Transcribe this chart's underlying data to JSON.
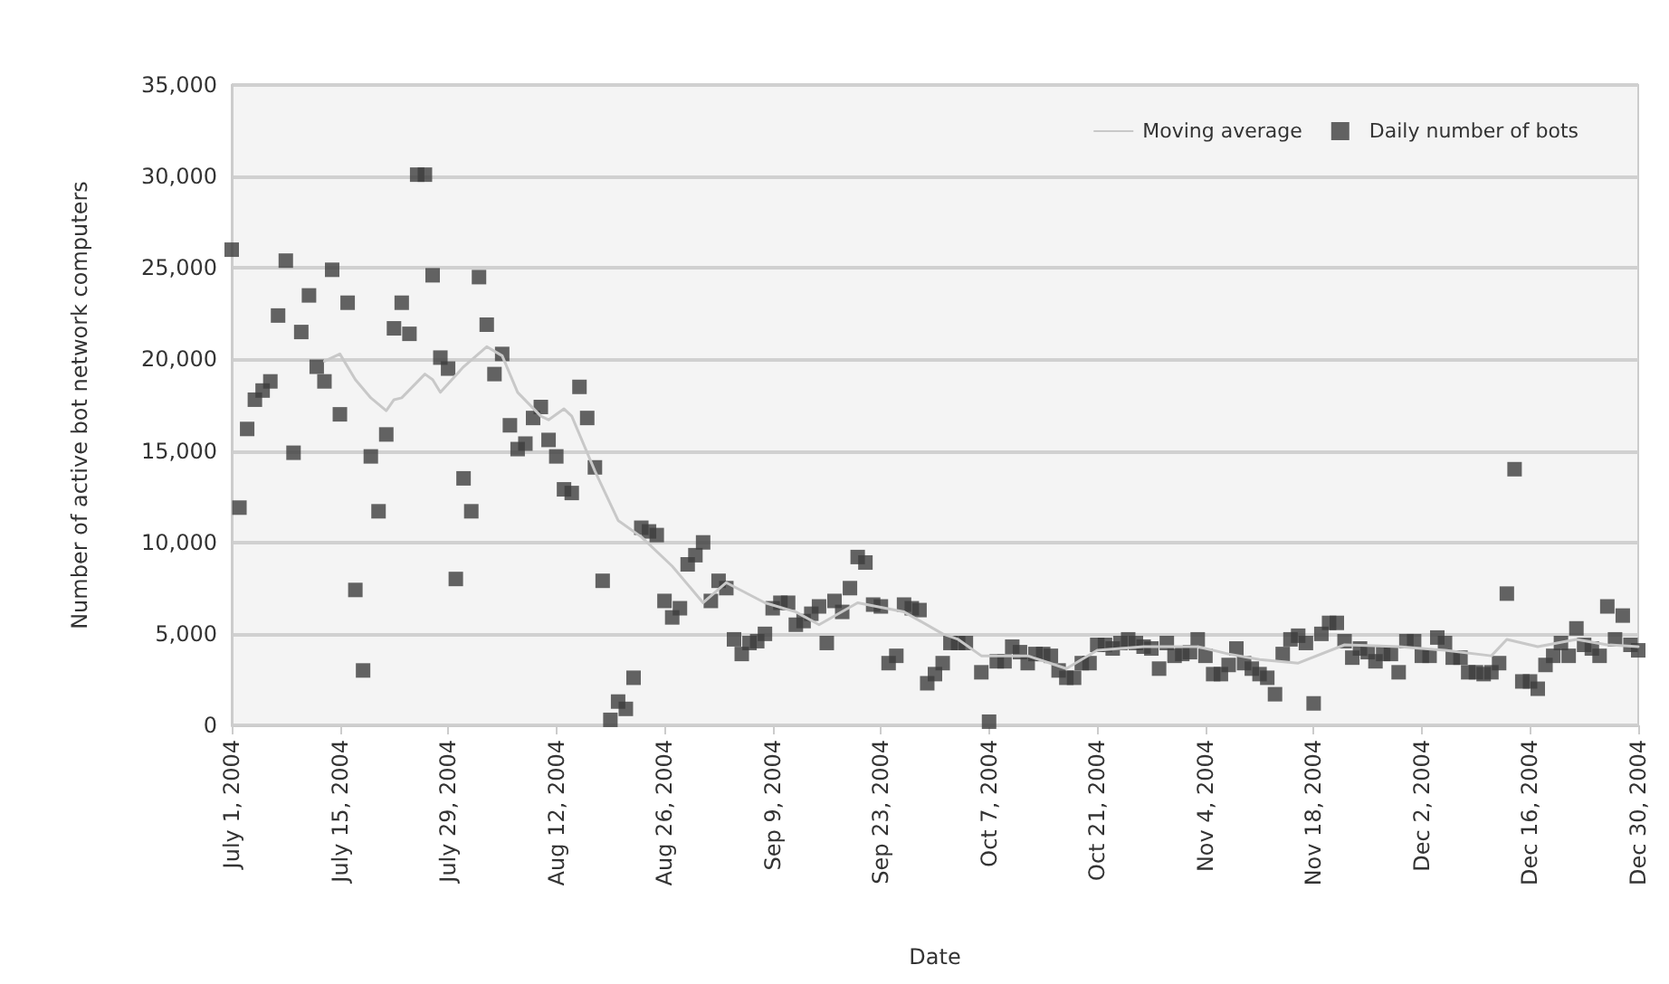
{
  "chart_data": {
    "type": "scatter",
    "xlabel": "Date",
    "ylabel": "Number of active bot network computers",
    "xlim": [
      "2004-07-01",
      "2004-12-30"
    ],
    "xticks": [
      {
        "value": "2004-07-01",
        "label": "July 1, 2004"
      },
      {
        "value": "2004-07-15",
        "label": "July 15, 2004"
      },
      {
        "value": "2004-07-29",
        "label": "July 29, 2004"
      },
      {
        "value": "2004-08-12",
        "label": "Aug 12, 2004"
      },
      {
        "value": "2004-08-26",
        "label": "Aug 26, 2004"
      },
      {
        "value": "2004-09-09",
        "label": "Sep 9, 2004"
      },
      {
        "value": "2004-09-23",
        "label": "Sep 23, 2004"
      },
      {
        "value": "2004-10-07",
        "label": "Oct 7, 2004"
      },
      {
        "value": "2004-10-21",
        "label": "Oct 21, 2004"
      },
      {
        "value": "2004-11-04",
        "label": "Nov 4, 2004"
      },
      {
        "value": "2004-11-18",
        "label": "Nov 18, 2004"
      },
      {
        "value": "2004-12-02",
        "label": "Dec 2, 2004"
      },
      {
        "value": "2004-12-16",
        "label": "Dec 16, 2004"
      },
      {
        "value": "2004-12-30",
        "label": "Dec 30, 2004"
      }
    ],
    "ylim": [
      0,
      35000
    ],
    "yticks": [
      0,
      {
        "value": 5000,
        "label": "5,000"
      },
      {
        "value": 10000,
        "label": "10,000"
      },
      {
        "value": 15000,
        "label": "15,000"
      },
      {
        "value": 20000,
        "label": "20,000"
      },
      {
        "value": 25000,
        "label": "25,000"
      },
      {
        "value": 30000,
        "label": "30,000"
      },
      {
        "value": 35000,
        "label": "35,000"
      }
    ],
    "grid": "y",
    "legend": "top right",
    "series": [
      {
        "name": "Moving average",
        "type": "line",
        "color": "#c8c8c8",
        "marker": "none",
        "line_style": "solid",
        "x": [
          "2004-07-13",
          "2004-07-15",
          "2004-07-17",
          "2004-07-19",
          "2004-07-21",
          "2004-07-22",
          "2004-07-23",
          "2004-07-26",
          "2004-07-27",
          "2004-07-28",
          "2004-07-31",
          "2004-08-03",
          "2004-08-05",
          "2004-08-07",
          "2004-08-10",
          "2004-08-11",
          "2004-08-13",
          "2004-08-14",
          "2004-08-17",
          "2004-08-20",
          "2004-08-23",
          "2004-08-27",
          "2004-08-31",
          "2004-09-03",
          "2004-09-08",
          "2004-09-12",
          "2004-09-15",
          "2004-09-20",
          "2004-09-26",
          "2004-10-01",
          "2004-10-03",
          "2004-10-06",
          "2004-10-12",
          "2004-10-17",
          "2004-10-21",
          "2004-10-27",
          "2004-11-03",
          "2004-11-07",
          "2004-11-11",
          "2004-11-16",
          "2004-11-22",
          "2004-11-29",
          "2004-12-05",
          "2004-12-11",
          "2004-12-13",
          "2004-12-17",
          "2004-12-22",
          "2004-12-26",
          "2004-12-30"
        ],
        "values": [
          19900,
          20300,
          18900,
          17900,
          17200,
          17800,
          17900,
          19200,
          18900,
          18200,
          19600,
          20700,
          20200,
          18200,
          16900,
          16700,
          17300,
          16900,
          13900,
          11200,
          10300,
          8700,
          6700,
          7800,
          6700,
          6200,
          5500,
          6700,
          6200,
          5000,
          4700,
          3800,
          3800,
          3100,
          4100,
          4300,
          4300,
          3900,
          3600,
          3400,
          4400,
          4300,
          4100,
          3800,
          4700,
          4300,
          4700,
          4400,
          4300
        ]
      },
      {
        "name": "Daily number of bots",
        "color": "#3d3d3d",
        "marker": "square",
        "x": [
          "2004-07-01",
          "2004-07-02",
          "2004-07-03",
          "2004-07-04",
          "2004-07-05",
          "2004-07-06",
          "2004-07-07",
          "2004-07-08",
          "2004-07-09",
          "2004-07-10",
          "2004-07-11",
          "2004-07-12",
          "2004-07-13",
          "2004-07-14",
          "2004-07-15",
          "2004-07-16",
          "2004-07-17",
          "2004-07-18",
          "2004-07-19",
          "2004-07-20",
          "2004-07-21",
          "2004-07-22",
          "2004-07-23",
          "2004-07-24",
          "2004-07-25",
          "2004-07-26",
          "2004-07-27",
          "2004-07-28",
          "2004-07-29",
          "2004-07-30",
          "2004-07-31",
          "2004-08-01",
          "2004-08-02",
          "2004-08-03",
          "2004-08-04",
          "2004-08-05",
          "2004-08-06",
          "2004-08-07",
          "2004-08-08",
          "2004-08-09",
          "2004-08-10",
          "2004-08-11",
          "2004-08-12",
          "2004-08-13",
          "2004-08-14",
          "2004-08-15",
          "2004-08-16",
          "2004-08-17",
          "2004-08-18",
          "2004-08-19",
          "2004-08-20",
          "2004-08-21",
          "2004-08-22",
          "2004-08-23",
          "2004-08-24",
          "2004-08-25",
          "2004-08-26",
          "2004-08-27",
          "2004-08-28",
          "2004-08-29",
          "2004-08-30",
          "2004-08-31",
          "2004-09-01",
          "2004-09-02",
          "2004-09-03",
          "2004-09-04",
          "2004-09-05",
          "2004-09-06",
          "2004-09-07",
          "2004-09-08",
          "2004-09-09",
          "2004-09-10",
          "2004-09-11",
          "2004-09-12",
          "2004-09-13",
          "2004-09-14",
          "2004-09-15",
          "2004-09-16",
          "2004-09-17",
          "2004-09-18",
          "2004-09-19",
          "2004-09-20",
          "2004-09-21",
          "2004-09-22",
          "2004-09-23",
          "2004-09-24",
          "2004-09-25",
          "2004-09-26",
          "2004-09-27",
          "2004-09-28",
          "2004-09-29",
          "2004-09-30",
          "2004-10-01",
          "2004-10-02",
          "2004-10-03",
          "2004-10-04",
          "2004-10-06",
          "2004-10-07",
          "2004-10-08",
          "2004-10-09",
          "2004-10-10",
          "2004-10-11",
          "2004-10-12",
          "2004-10-13",
          "2004-10-14",
          "2004-10-15",
          "2004-10-16",
          "2004-10-17",
          "2004-10-18",
          "2004-10-19",
          "2004-10-20",
          "2004-10-21",
          "2004-10-22",
          "2004-10-23",
          "2004-10-24",
          "2004-10-25",
          "2004-10-26",
          "2004-10-27",
          "2004-10-28",
          "2004-10-29",
          "2004-10-30",
          "2004-10-31",
          "2004-11-01",
          "2004-11-02",
          "2004-11-03",
          "2004-11-04",
          "2004-11-05",
          "2004-11-06",
          "2004-11-07",
          "2004-11-08",
          "2004-11-09",
          "2004-11-10",
          "2004-11-11",
          "2004-11-12",
          "2004-11-13",
          "2004-11-14",
          "2004-11-15",
          "2004-11-16",
          "2004-11-17",
          "2004-11-18",
          "2004-11-19",
          "2004-11-20",
          "2004-11-21",
          "2004-11-22",
          "2004-11-23",
          "2004-11-24",
          "2004-11-25",
          "2004-11-26",
          "2004-11-27",
          "2004-11-28",
          "2004-11-29",
          "2004-11-30",
          "2004-12-01",
          "2004-12-02",
          "2004-12-03",
          "2004-12-04",
          "2004-12-05",
          "2004-12-06",
          "2004-12-07",
          "2004-12-08",
          "2004-12-09",
          "2004-12-10",
          "2004-12-11",
          "2004-12-12",
          "2004-12-13",
          "2004-12-14",
          "2004-12-15",
          "2004-12-16",
          "2004-12-17",
          "2004-12-18",
          "2004-12-19",
          "2004-12-20",
          "2004-12-21",
          "2004-12-22",
          "2004-12-23",
          "2004-12-24",
          "2004-12-25",
          "2004-12-26",
          "2004-12-27",
          "2004-12-28",
          "2004-12-29",
          "2004-12-30"
        ],
        "values": [
          26000,
          11900,
          16200,
          17800,
          18300,
          18800,
          22400,
          25400,
          14900,
          21500,
          23500,
          19600,
          18800,
          24900,
          17000,
          23100,
          7400,
          3000,
          14700,
          11700,
          15900,
          21700,
          23100,
          21400,
          30100,
          30100,
          24600,
          20100,
          19500,
          8000,
          13500,
          11700,
          24500,
          21900,
          19200,
          20300,
          16400,
          15100,
          15400,
          16800,
          17400,
          15600,
          14700,
          12900,
          12700,
          18500,
          16800,
          14100,
          7900,
          300,
          1300,
          900,
          2600,
          10800,
          10600,
          10400,
          6800,
          5900,
          6400,
          8800,
          9300,
          10000,
          6800,
          7900,
          7500,
          4700,
          3900,
          4500,
          4600,
          5000,
          6400,
          6700,
          6700,
          5500,
          5700,
          6100,
          6500,
          4500,
          6800,
          6200,
          7500,
          9200,
          8900,
          6600,
          6500,
          3400,
          3800,
          6600,
          6400,
          6300,
          2300,
          2800,
          3400,
          4500,
          4500,
          4500,
          2900,
          200,
          3500,
          3500,
          4300,
          4000,
          3400,
          3900,
          3900,
          3800,
          3000,
          2600,
          2600,
          3400,
          3400,
          4400,
          4400,
          4200,
          4500,
          4700,
          4500,
          4300,
          4200,
          3100,
          4500,
          3800,
          3900,
          4000,
          4700,
          3800,
          2800,
          2800,
          3300,
          4200,
          3400,
          3100,
          2800,
          2600,
          1700,
          3900,
          4700,
          4900,
          4500,
          1200,
          5000,
          5600,
          5600,
          4600,
          3700,
          4200,
          4000,
          3500,
          3900,
          3900,
          2900,
          4600,
          4600,
          3800,
          3800,
          4800,
          4500,
          3700,
          3700,
          2900,
          2900,
          2800,
          2900,
          3400,
          7200,
          14000,
          2400,
          2400,
          2000,
          3300,
          3800,
          4500,
          3800,
          5300,
          4400,
          4200,
          3800,
          6500,
          4700,
          6000,
          4400,
          4100
        ]
      }
    ]
  }
}
